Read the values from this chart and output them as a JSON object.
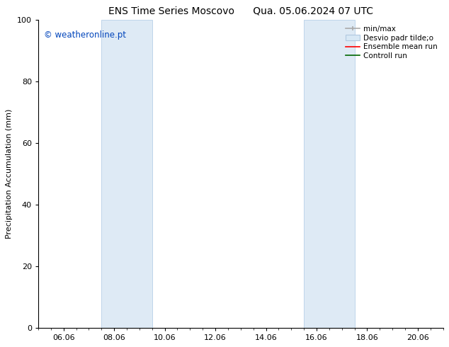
{
  "title_left": "ENS Time Series Moscovo",
  "title_right": "Qua. 05.06.2024 07 UTC",
  "ylabel": "Precipitation Accumulation (mm)",
  "ylim": [
    0,
    100
  ],
  "yticks": [
    0,
    20,
    40,
    60,
    80,
    100
  ],
  "xlim": [
    0,
    16
  ],
  "xtick_labels": [
    "06.06",
    "08.06",
    "10.06",
    "12.06",
    "14.06",
    "16.06",
    "18.06",
    "20.06"
  ],
  "xtick_positions": [
    1,
    3,
    5,
    7,
    9,
    11,
    13,
    15
  ],
  "shaded_bands": [
    {
      "x_start": 2.5,
      "x_end": 4.5
    },
    {
      "x_start": 10.5,
      "x_end": 12.5
    }
  ],
  "band_facecolor": "#deeaf5",
  "band_edgecolor": "#b8d0e8",
  "watermark_text": "© weatheronline.pt",
  "watermark_color": "#0044bb",
  "watermark_fontsize": 8.5,
  "legend_minmax_color": "#aaaaaa",
  "legend_std_facecolor": "#d8e8f5",
  "legend_std_edgecolor": "#b0c8e0",
  "legend_ens_color": "#ff0000",
  "legend_ctrl_color": "#006600",
  "bg_color": "#ffffff",
  "title_fontsize": 10,
  "axis_label_fontsize": 8,
  "tick_fontsize": 8,
  "legend_fontsize": 7.5
}
